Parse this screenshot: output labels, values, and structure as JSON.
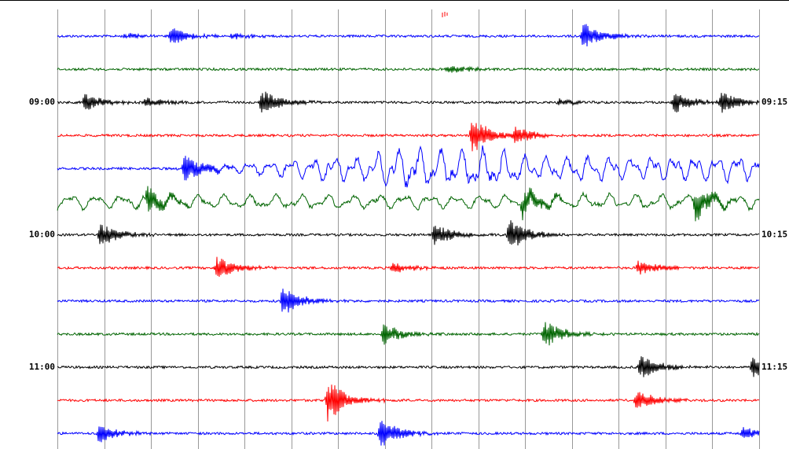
{
  "left_labels": [
    "09:00",
    "10:00",
    "11:00"
  ],
  "right_labels": [
    "09:15",
    "10:15",
    "11:15"
  ],
  "trace_colors": [
    "#0000ff",
    "#006400",
    "#000000",
    "#ff0000"
  ]
}
